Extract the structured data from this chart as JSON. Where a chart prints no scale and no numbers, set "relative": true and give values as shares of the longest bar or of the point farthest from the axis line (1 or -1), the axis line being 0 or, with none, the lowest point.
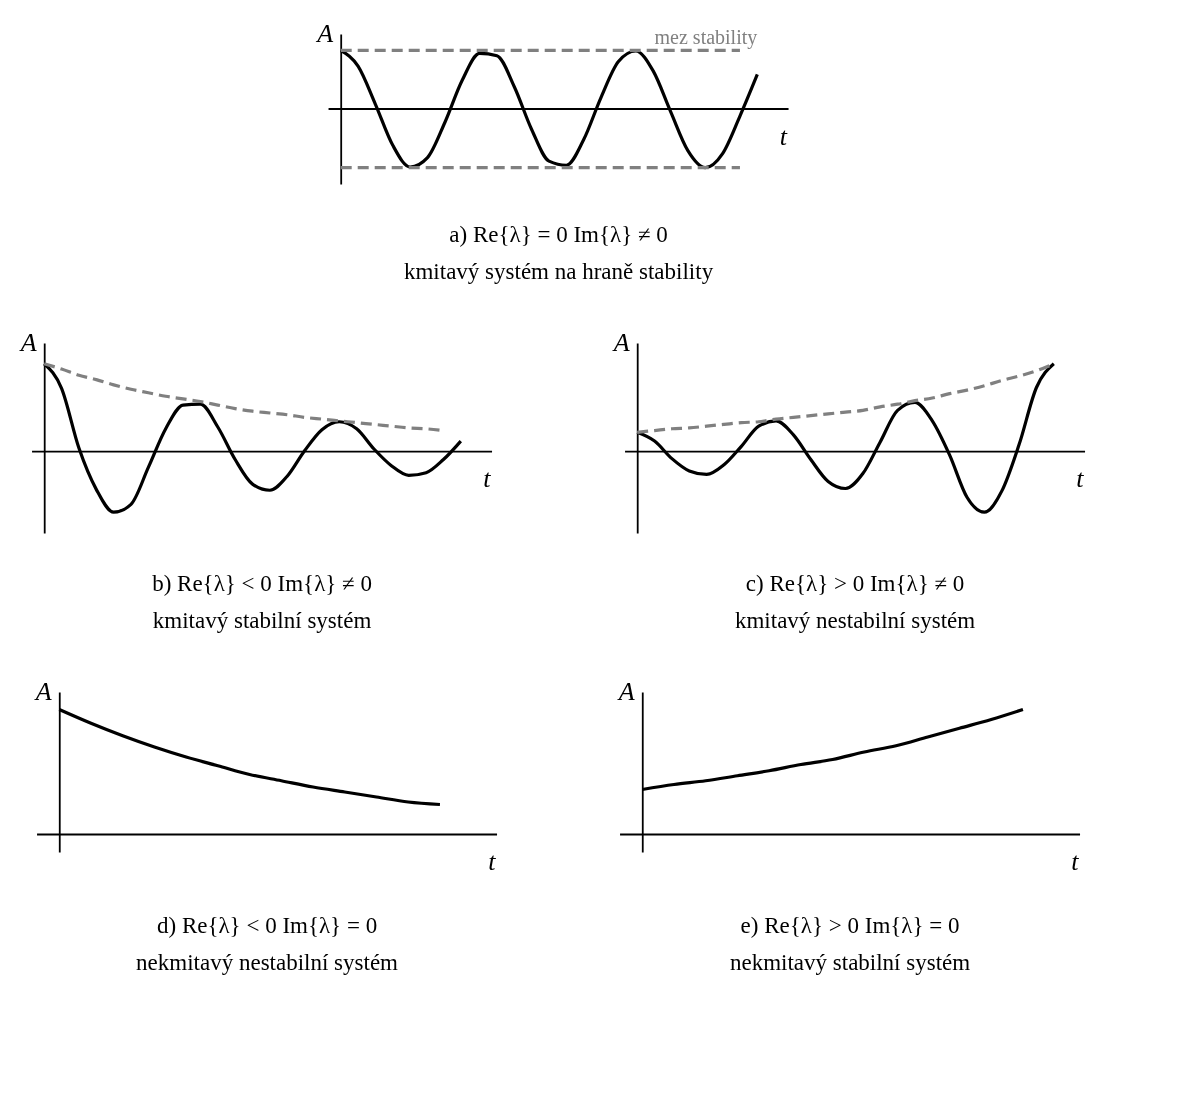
{
  "chart_data": [
    {
      "type": "line",
      "relative": true,
      "title": "a) Re{λ} = 0    Im{λ} ≠ 0",
      "subtitle": "kmitavý systém na hraně stability",
      "xlabel": "t",
      "ylabel": "A",
      "annotations": [
        {
          "text": "mez stability",
          "y": 1
        }
      ],
      "categories": [
        null,
        null,
        null,
        null,
        null,
        null,
        null,
        null,
        null,
        null,
        null,
        null,
        null,
        null,
        null,
        null,
        null,
        null,
        null,
        null,
        null,
        null,
        null,
        null,
        null
      ],
      "series": [
        {
          "color": "#000000",
          "line_style": "solid",
          "values": [
            1.0,
            0.73,
            0.08,
            -0.62,
            -0.99,
            -0.83,
            -0.23,
            0.49,
            0.95,
            0.91,
            0.38,
            -0.35,
            -0.89,
            -0.96,
            -0.52,
            0.2,
            0.81,
            0.99,
            0.65,
            -0.04,
            -0.71,
            -1.0,
            -0.76,
            -0.12,
            0.59
          ]
        },
        {
          "color": "#808080",
          "line_style": "dashed",
          "values": [
            1,
            1,
            1,
            1,
            1,
            1,
            1,
            1,
            1,
            1,
            1,
            1,
            1,
            1,
            1,
            1,
            1,
            1,
            1,
            1,
            1,
            1,
            1,
            1,
            null
          ]
        },
        {
          "color": "#808080",
          "line_style": "dashed",
          "values": [
            -1,
            -1,
            -1,
            -1,
            -1,
            -1,
            -1,
            -1,
            -1,
            -1,
            -1,
            -1,
            -1,
            -1,
            -1,
            -1,
            -1,
            -1,
            -1,
            -1,
            -1,
            -1,
            -1,
            -1,
            null
          ]
        }
      ]
    },
    {
      "type": "line",
      "relative": true,
      "title": "b) Re{λ} < 0    Im{λ} ≠ 0",
      "subtitle": "kmitavý stabilní systém",
      "xlabel": "t",
      "ylabel": "A",
      "categories": [
        null,
        null,
        null,
        null,
        null,
        null,
        null,
        null,
        null,
        null,
        null,
        null,
        null,
        null,
        null,
        null,
        null,
        null,
        null,
        null,
        null,
        null,
        null,
        null,
        null
      ],
      "series": [
        {
          "color": "#000000",
          "line_style": "solid",
          "values": [
            1.0,
            0.72,
            0.04,
            -0.43,
            -0.69,
            -0.6,
            -0.18,
            0.26,
            0.53,
            0.54,
            0.28,
            -0.09,
            -0.37,
            -0.44,
            -0.28,
            0.01,
            0.25,
            0.34,
            0.26,
            0.03,
            -0.16,
            -0.27,
            -0.24,
            -0.09,
            0.12
          ]
        },
        {
          "color": "#808080",
          "line_style": "dashed",
          "values": [
            1.0,
            0.94,
            0.87,
            0.82,
            0.76,
            0.71,
            0.67,
            0.63,
            0.6,
            0.57,
            0.53,
            0.49,
            0.46,
            0.44,
            0.42,
            0.39,
            0.37,
            0.35,
            0.33,
            0.31,
            0.29,
            0.27,
            0.26,
            0.24,
            null
          ]
        }
      ]
    },
    {
      "type": "line",
      "relative": true,
      "title": "c) Re{λ} > 0    Im{λ} ≠ 0",
      "subtitle": "kmitavý nestabilní systém",
      "xlabel": "t",
      "ylabel": "A",
      "categories": [
        null,
        null,
        null,
        null,
        null,
        null,
        null,
        null,
        null,
        null,
        null,
        null,
        null,
        null,
        null,
        null,
        null,
        null,
        null,
        null,
        null,
        null,
        null,
        null,
        null
      ],
      "series": [
        {
          "color": "#000000",
          "line_style": "solid",
          "values": [
            0.22,
            0.12,
            -0.08,
            -0.22,
            -0.26,
            -0.15,
            0.06,
            0.29,
            0.35,
            0.19,
            -0.09,
            -0.34,
            -0.42,
            -0.25,
            0.11,
            0.47,
            0.56,
            0.35,
            -0.04,
            -0.52,
            -0.69,
            -0.45,
            0.08,
            0.73,
            1.0
          ]
        },
        {
          "color": "#808080",
          "line_style": "dashed",
          "values": [
            0.22,
            0.24,
            0.26,
            0.27,
            0.29,
            0.31,
            0.33,
            0.34,
            0.37,
            0.39,
            0.41,
            0.43,
            0.45,
            0.47,
            0.51,
            0.54,
            0.58,
            0.61,
            0.66,
            0.7,
            0.75,
            0.81,
            0.86,
            0.92,
            1.0
          ]
        }
      ]
    },
    {
      "type": "line",
      "relative": true,
      "title": "d) Re{λ} < 0    Im{λ} = 0",
      "subtitle": "nekmitavý nestabilní systém",
      "xlabel": "t",
      "ylabel": "A",
      "categories": [
        null,
        null,
        null,
        null,
        null,
        null,
        null,
        null,
        null,
        null,
        null,
        null,
        null
      ],
      "series": [
        {
          "color": "#000000",
          "line_style": "solid",
          "values": [
            1.0,
            0.89,
            0.79,
            0.7,
            0.62,
            0.55,
            0.48,
            0.43,
            0.38,
            0.34,
            0.3,
            0.26,
            0.24
          ]
        }
      ]
    },
    {
      "type": "line",
      "relative": true,
      "title": "e) Re{λ} > 0    Im{λ} = 0",
      "subtitle": "nekmitavý stabilní systém",
      "xlabel": "t",
      "ylabel": "A",
      "categories": [
        null,
        null,
        null,
        null,
        null,
        null,
        null,
        null,
        null,
        null,
        null,
        null,
        null
      ],
      "series": [
        {
          "color": "#000000",
          "line_style": "solid",
          "values": [
            0.36,
            0.4,
            0.43,
            0.47,
            0.51,
            0.56,
            0.6,
            0.66,
            0.71,
            0.78,
            0.85,
            0.92,
            1.0
          ]
        }
      ]
    }
  ]
}
